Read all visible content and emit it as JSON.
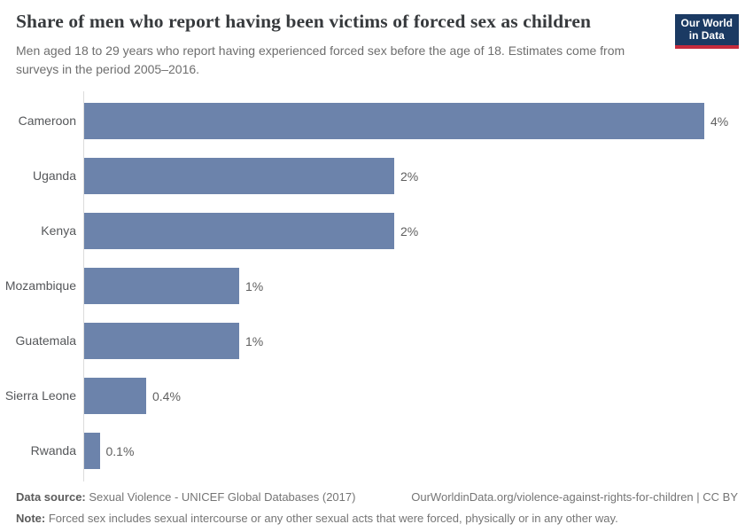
{
  "header": {
    "title": "Share of men who report having been victims of forced sex as children",
    "subtitle": "Men aged 18 to 29 years who report having experienced forced sex before the age of 18. Estimates come from surveys in the period 2005–2016.",
    "logo_line1": "Our World",
    "logo_line2": "in Data",
    "logo_bg_color": "#1b3a63",
    "logo_accent_color": "#c52b3d"
  },
  "chart_data": {
    "type": "bar",
    "orientation": "horizontal",
    "title": "Share of men who report having been victims of forced sex as children",
    "categories": [
      "Cameroon",
      "Uganda",
      "Kenya",
      "Mozambique",
      "Guatemala",
      "Sierra Leone",
      "Rwanda"
    ],
    "values": [
      4,
      2,
      2,
      1,
      1,
      0.4,
      0.1
    ],
    "value_labels": [
      "4%",
      "2%",
      "2%",
      "1%",
      "1%",
      "0.4%",
      "0.1%"
    ],
    "unit": "%",
    "xlim": [
      0,
      4
    ],
    "bar_color": "#6c83ab",
    "grid": false,
    "legend": "none"
  },
  "footer": {
    "datasource_label": "Data source:",
    "datasource_value": " Sexual Violence - UNICEF Global Databases (2017)",
    "link": "OurWorldinData.org/violence-against-rights-for-children | CC BY",
    "note_label": "Note:",
    "note_value": " Forced sex includes sexual intercourse or any other sexual acts that were forced, physically or in any other way."
  }
}
